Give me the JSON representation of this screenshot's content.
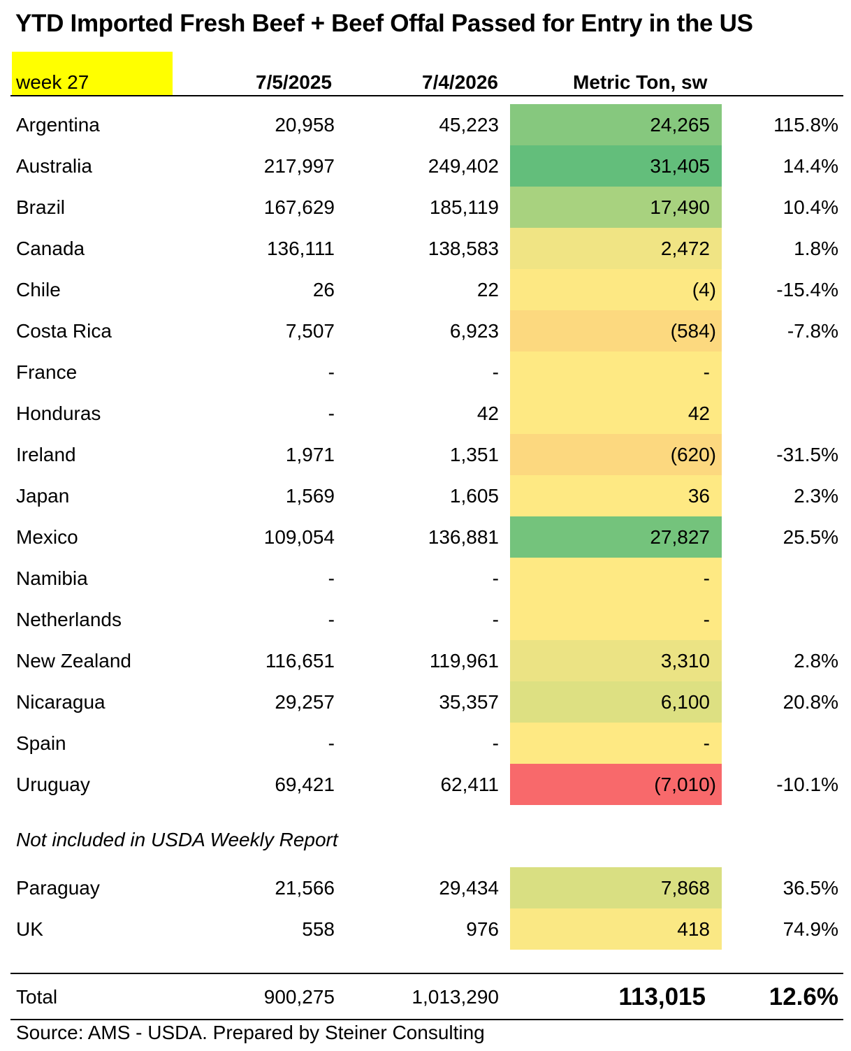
{
  "title": "YTD Imported Fresh Beef + Beef Offal Passed for Entry in the US",
  "header": {
    "week": "week 27",
    "col_2025": "7/5/2025",
    "col_2026": "7/4/2026",
    "col_diff": "Metric Ton, sw"
  },
  "rows": [
    {
      "country": "Argentina",
      "y2025": "20,958",
      "y2026": "45,223",
      "diff": "24,265",
      "pct": "115.8%",
      "color": "#86c87e"
    },
    {
      "country": "Australia",
      "y2025": "217,997",
      "y2026": "249,402",
      "diff": "31,405",
      "pct": "14.4%",
      "color": "#63be7b"
    },
    {
      "country": "Brazil",
      "y2025": "167,629",
      "y2026": "185,119",
      "diff": "17,490",
      "pct": "10.4%",
      "color": "#a8d27f"
    },
    {
      "country": "Canada",
      "y2025": "136,111",
      "y2026": "138,583",
      "diff": "2,472",
      "pct": "1.8%",
      "color": "#f0e484"
    },
    {
      "country": "Chile",
      "y2025": "26",
      "y2026": "22",
      "diff": "(4)",
      "pct": "-15.4%",
      "color": "#fde883"
    },
    {
      "country": "Costa Rica",
      "y2025": "7,507",
      "y2026": "6,923",
      "diff": "(584)",
      "pct": "-7.8%",
      "color": "#fcd97f"
    },
    {
      "country": "France",
      "y2025": "-",
      "y2026": "-",
      "diff": "-",
      "pct": "",
      "color": "#fee983"
    },
    {
      "country": "Honduras",
      "y2025": "-",
      "y2026": "42",
      "diff": "42",
      "pct": "",
      "color": "#fee983"
    },
    {
      "country": "Ireland",
      "y2025": "1,971",
      "y2026": "1,351",
      "diff": "(620)",
      "pct": "-31.5%",
      "color": "#fcd87f"
    },
    {
      "country": "Japan",
      "y2025": "1,569",
      "y2026": "1,605",
      "diff": "36",
      "pct": "2.3%",
      "color": "#fee983"
    },
    {
      "country": "Mexico",
      "y2025": "109,054",
      "y2026": "136,881",
      "diff": "27,827",
      "pct": "25.5%",
      "color": "#74c37c"
    },
    {
      "country": "Namibia",
      "y2025": "-",
      "y2026": "-",
      "diff": "-",
      "pct": "",
      "color": "#fee983"
    },
    {
      "country": "Netherlands",
      "y2025": "-",
      "y2026": "-",
      "diff": "-",
      "pct": "",
      "color": "#fee983"
    },
    {
      "country": "New Zealand",
      "y2025": "116,651",
      "y2026": "119,961",
      "diff": "3,310",
      "pct": "2.8%",
      "color": "#ebe384"
    },
    {
      "country": "Nicaragua",
      "y2025": "29,257",
      "y2026": "35,357",
      "diff": "6,100",
      "pct": "20.8%",
      "color": "#dde082"
    },
    {
      "country": "Spain",
      "y2025": "-",
      "y2026": "-",
      "diff": "-",
      "pct": "",
      "color": "#fee983"
    },
    {
      "country": "Uruguay",
      "y2025": "69,421",
      "y2026": "62,411",
      "diff": "(7,010)",
      "pct": "-10.1%",
      "color": "#f8696b"
    }
  ],
  "note": "Not included in USDA Weekly Report",
  "extra_rows": [
    {
      "country": "Paraguay",
      "y2025": "21,566",
      "y2026": "29,434",
      "diff": "7,868",
      "pct": "36.5%",
      "color": "#d9df82"
    },
    {
      "country": "UK",
      "y2025": "558",
      "y2026": "976",
      "diff": "418",
      "pct": "74.9%",
      "color": "#fae884"
    }
  ],
  "total": {
    "label": "Total",
    "y2025": "900,275",
    "y2026": "1,013,290",
    "diff": "113,015",
    "pct": "12.6%"
  },
  "source": "Source: AMS - USDA.  Prepared by Steiner Consulting"
}
